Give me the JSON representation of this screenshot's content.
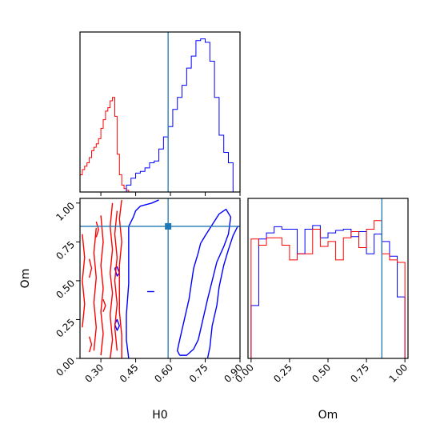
{
  "chart_data": [
    {
      "type": "histogram",
      "panel": "H0 marginal",
      "xlim": [
        0.21,
        0.9
      ],
      "x_tick_labels": [],
      "y_ticks_visible": false,
      "truth_line": {
        "x": 0.59,
        "color": "#1f77b4"
      },
      "series": [
        {
          "color": "#ff0000",
          "bin_edges": [
            0.21,
            0.22,
            0.23,
            0.24,
            0.25,
            0.26,
            0.27,
            0.28,
            0.29,
            0.3,
            0.31,
            0.32,
            0.33,
            0.34,
            0.35,
            0.36,
            0.37,
            0.38,
            0.39,
            0.4,
            0.41,
            0.42,
            0.43
          ],
          "counts": [
            0.1,
            0.13,
            0.15,
            0.17,
            0.2,
            0.24,
            0.26,
            0.28,
            0.31,
            0.37,
            0.42,
            0.47,
            0.49,
            0.53,
            0.55,
            0.44,
            0.22,
            0.1,
            0.04,
            0.02,
            0.01,
            0.0
          ]
        },
        {
          "color": "#0000ff",
          "bin_edges": [
            0.41,
            0.43,
            0.45,
            0.47,
            0.49,
            0.51,
            0.53,
            0.55,
            0.57,
            0.59,
            0.61,
            0.63,
            0.65,
            0.67,
            0.69,
            0.71,
            0.73,
            0.75,
            0.77,
            0.79,
            0.81,
            0.83,
            0.85,
            0.87,
            0.89
          ],
          "counts": [
            0.04,
            0.08,
            0.11,
            0.12,
            0.14,
            0.17,
            0.18,
            0.25,
            0.32,
            0.38,
            0.48,
            0.55,
            0.62,
            0.72,
            0.79,
            0.88,
            0.89,
            0.87,
            0.76,
            0.55,
            0.33,
            0.23,
            0.17,
            0.0
          ]
        }
      ]
    },
    {
      "type": "contour",
      "panel": "Om vs H0",
      "xlabel": "H0",
      "ylabel": "Om",
      "xlim": [
        0.21,
        0.9
      ],
      "ylim": [
        0.0,
        1.03
      ],
      "x_tick_values": [
        0.3,
        0.45,
        0.6,
        0.75,
        0.9
      ],
      "x_tick_labels": [
        "0.30",
        "0.45",
        "0.60",
        "0.75",
        "0.90"
      ],
      "y_tick_values": [
        0.0,
        0.25,
        0.5,
        0.75,
        1.0
      ],
      "y_tick_labels": [
        "0.00",
        "0.25",
        "0.50",
        "0.75",
        "1.00"
      ],
      "truth": {
        "x": 0.59,
        "y": 0.85,
        "color": "#1f77b4"
      },
      "contours": [
        {
          "color": "#0000ff",
          "points": [
            [
              0.64,
              0.02
            ],
            [
              0.63,
              0.05
            ],
            [
              0.64,
              0.12
            ],
            [
              0.66,
              0.25
            ],
            [
              0.68,
              0.38
            ],
            [
              0.69,
              0.48
            ],
            [
              0.7,
              0.58
            ],
            [
              0.72,
              0.68
            ],
            [
              0.73,
              0.74
            ],
            [
              0.75,
              0.79
            ],
            [
              0.78,
              0.86
            ],
            [
              0.81,
              0.93
            ],
            [
              0.84,
              0.96
            ],
            [
              0.86,
              0.91
            ],
            [
              0.85,
              0.8
            ],
            [
              0.83,
              0.72
            ],
            [
              0.8,
              0.62
            ],
            [
              0.78,
              0.5
            ],
            [
              0.76,
              0.38
            ],
            [
              0.74,
              0.25
            ],
            [
              0.72,
              0.12
            ],
            [
              0.7,
              0.06
            ],
            [
              0.67,
              0.02
            ],
            [
              0.64,
              0.02
            ]
          ]
        },
        {
          "color": "#0000ff",
          "points": [
            [
              0.76,
              0.0
            ],
            [
              0.77,
              0.07
            ],
            [
              0.78,
              0.21
            ],
            [
              0.8,
              0.34
            ],
            [
              0.81,
              0.46
            ],
            [
              0.83,
              0.6
            ],
            [
              0.85,
              0.7
            ],
            [
              0.87,
              0.79
            ],
            [
              0.89,
              0.85
            ],
            [
              0.9,
              0.85
            ]
          ]
        },
        {
          "color": "#0000ff",
          "points": [
            [
              0.42,
              0.0
            ],
            [
              0.41,
              0.12
            ],
            [
              0.41,
              0.28
            ],
            [
              0.42,
              0.48
            ],
            [
              0.42,
              0.68
            ],
            [
              0.42,
              0.85
            ],
            [
              0.44,
              0.91
            ],
            [
              0.45,
              0.95
            ],
            [
              0.47,
              0.98
            ],
            [
              0.52,
              1.0
            ],
            [
              0.55,
              1.02
            ]
          ]
        },
        {
          "color": "#0000ff",
          "points": [
            [
              0.36,
              0.58
            ],
            [
              0.37,
              0.53
            ],
            [
              0.38,
              0.55
            ],
            [
              0.37,
              0.59
            ],
            [
              0.36,
              0.58
            ]
          ]
        },
        {
          "color": "#0000ff",
          "points": [
            [
              0.36,
              0.22
            ],
            [
              0.37,
              0.18
            ],
            [
              0.38,
              0.21
            ],
            [
              0.37,
              0.25
            ],
            [
              0.36,
              0.22
            ]
          ]
        },
        {
          "color": "#0000ff",
          "points": [
            [
              0.5,
              0.43
            ],
            [
              0.53,
              0.43
            ]
          ]
        },
        {
          "color": "#ff0000",
          "points": [
            [
              0.39,
              0.0
            ],
            [
              0.39,
              0.15
            ],
            [
              0.38,
              0.3
            ],
            [
              0.38,
              0.45
            ],
            [
              0.38,
              0.6
            ],
            [
              0.39,
              0.75
            ],
            [
              0.38,
              0.9
            ],
            [
              0.39,
              1.02
            ]
          ]
        },
        {
          "color": "#ff0000",
          "points": [
            [
              0.37,
              0.05
            ],
            [
              0.36,
              0.2
            ],
            [
              0.37,
              0.35
            ],
            [
              0.36,
              0.5
            ],
            [
              0.37,
              0.65
            ],
            [
              0.36,
              0.8
            ],
            [
              0.37,
              0.95
            ]
          ]
        },
        {
          "color": "#ff0000",
          "points": [
            [
              0.34,
              0.0
            ],
            [
              0.35,
              0.12
            ],
            [
              0.34,
              0.28
            ],
            [
              0.35,
              0.42
            ],
            [
              0.34,
              0.55
            ],
            [
              0.35,
              0.7
            ],
            [
              0.34,
              0.85
            ],
            [
              0.35,
              1.0
            ]
          ]
        },
        {
          "color": "#ff0000",
          "points": [
            [
              0.3,
              0.02
            ],
            [
              0.31,
              0.16
            ],
            [
              0.3,
              0.3
            ],
            [
              0.31,
              0.45
            ],
            [
              0.3,
              0.6
            ],
            [
              0.31,
              0.75
            ],
            [
              0.3,
              0.92
            ]
          ]
        },
        {
          "color": "#ff0000",
          "points": [
            [
              0.27,
              0.05
            ],
            [
              0.28,
              0.2
            ],
            [
              0.27,
              0.36
            ],
            [
              0.28,
              0.52
            ],
            [
              0.27,
              0.68
            ],
            [
              0.28,
              0.84
            ]
          ]
        },
        {
          "color": "#ff0000",
          "points": [
            [
              0.22,
              0.2
            ],
            [
              0.23,
              0.35
            ],
            [
              0.22,
              0.5
            ],
            [
              0.23,
              0.65
            ],
            [
              0.22,
              0.8
            ]
          ]
        },
        {
          "color": "#ff0000",
          "points": [
            [
              0.25,
              0.52
            ],
            [
              0.26,
              0.58
            ],
            [
              0.25,
              0.64
            ]
          ]
        },
        {
          "color": "#ff0000",
          "points": [
            [
              0.31,
              0.3
            ],
            [
              0.32,
              0.34
            ],
            [
              0.31,
              0.38
            ]
          ]
        },
        {
          "color": "#ff0000",
          "points": [
            [
              0.28,
              0.78
            ],
            [
              0.29,
              0.83
            ],
            [
              0.28,
              0.88
            ]
          ]
        },
        {
          "color": "#ff0000",
          "points": [
            [
              0.25,
              0.04
            ],
            [
              0.26,
              0.09
            ],
            [
              0.25,
              0.14
            ]
          ]
        }
      ]
    },
    {
      "type": "histogram",
      "panel": "Om marginal",
      "xlabel": "Om",
      "xlim": [
        -0.02,
        1.02
      ],
      "x_tick_values": [
        0.0,
        0.25,
        0.5,
        0.75,
        1.0
      ],
      "x_tick_labels": [
        "0.00",
        "0.25",
        "0.50",
        "0.75",
        "1.00"
      ],
      "y_ticks_visible": false,
      "truth_line": {
        "x": 0.85,
        "color": "#1f77b4"
      },
      "series": [
        {
          "color": "#0000ff",
          "bin_edges": [
            0.0,
            0.05,
            0.1,
            0.15,
            0.2,
            0.25,
            0.3,
            0.35,
            0.4,
            0.45,
            0.5,
            0.55,
            0.6,
            0.65,
            0.7,
            0.75,
            0.8,
            0.85,
            0.9,
            0.95,
            1.0
          ],
          "counts": [
            0.43,
            0.97,
            1.02,
            1.07,
            1.05,
            1.05,
            0.85,
            1.05,
            1.08,
            0.98,
            1.02,
            1.04,
            1.05,
            0.99,
            1.03,
            0.85,
            1.01,
            0.95,
            0.83,
            0.5
          ]
        },
        {
          "color": "#ff0000",
          "bin_edges": [
            0.0,
            0.05,
            0.1,
            0.15,
            0.2,
            0.25,
            0.3,
            0.35,
            0.4,
            0.45,
            0.5,
            0.55,
            0.6,
            0.65,
            0.7,
            0.75,
            0.8,
            0.85,
            0.9,
            0.95,
            1.0
          ],
          "counts": [
            0.97,
            0.92,
            0.98,
            0.98,
            0.92,
            0.8,
            0.85,
            0.85,
            1.05,
            0.91,
            0.95,
            0.8,
            0.98,
            1.03,
            0.9,
            1.05,
            1.12,
            0.85,
            0.8,
            0.78
          ]
        }
      ]
    }
  ]
}
